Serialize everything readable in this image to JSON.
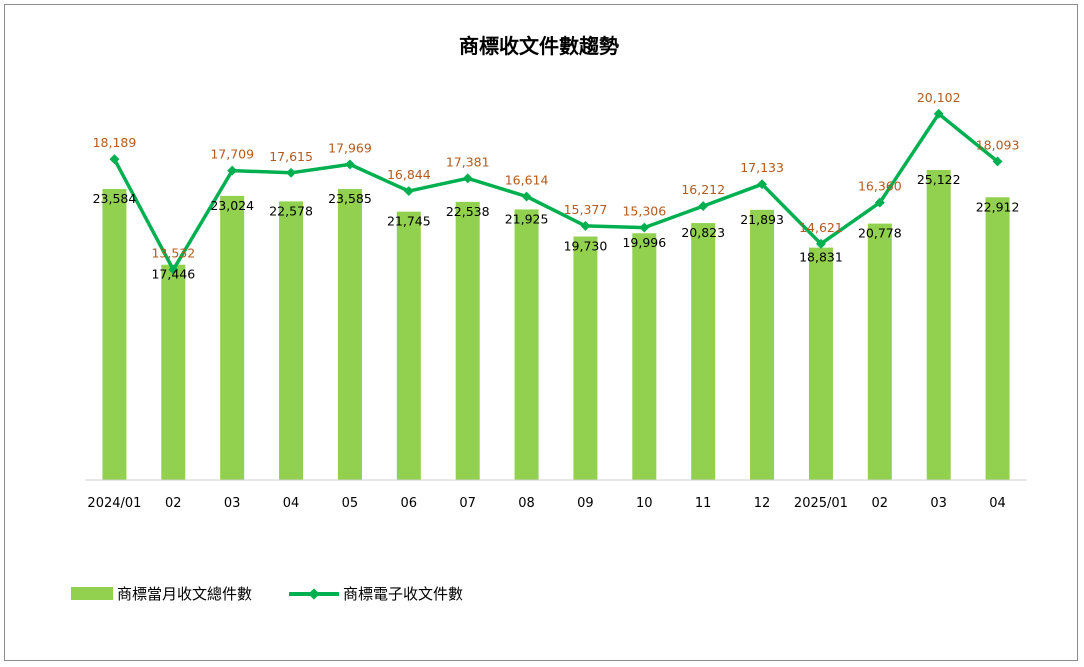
{
  "chart_data": {
    "type": "bar",
    "title": "商標收文件數趨勢",
    "categories": [
      "2024/01",
      "02",
      "03",
      "04",
      "05",
      "06",
      "07",
      "08",
      "09",
      "10",
      "11",
      "12",
      "2025/01",
      "02",
      "03",
      "04"
    ],
    "series": [
      {
        "name": "商標當月收文總件數",
        "type": "bar",
        "color": "#92d050",
        "values": [
          23584,
          17446,
          23024,
          22578,
          23585,
          21745,
          22538,
          21925,
          19730,
          19996,
          20823,
          21893,
          18831,
          20778,
          25122,
          22912
        ],
        "labels": [
          "23,584",
          "17,446",
          "23,024",
          "22,578",
          "23,585",
          "21,745",
          "22,538",
          "21,925",
          "19,730",
          "19,996",
          "20,823",
          "21,893",
          "18,831",
          "20,778",
          "25,122",
          "22,912"
        ]
      },
      {
        "name": "商標電子收文件數",
        "type": "line",
        "color": "#00b050",
        "label_color": "#b35a1f",
        "values": [
          18189,
          13532,
          17709,
          17615,
          17969,
          16844,
          17381,
          16614,
          15377,
          15306,
          16212,
          17133,
          14621,
          16360,
          20102,
          18093
        ],
        "labels": [
          "18,189",
          "13,532",
          "17,709",
          "17,615",
          "17,969",
          "16,844",
          "17,381",
          "16,614",
          "15,377",
          "15,306",
          "16,212",
          "17,133",
          "14,621",
          "16,360",
          "20,102",
          "18,093"
        ]
      }
    ],
    "legend": "bottom-left",
    "grid": false
  }
}
